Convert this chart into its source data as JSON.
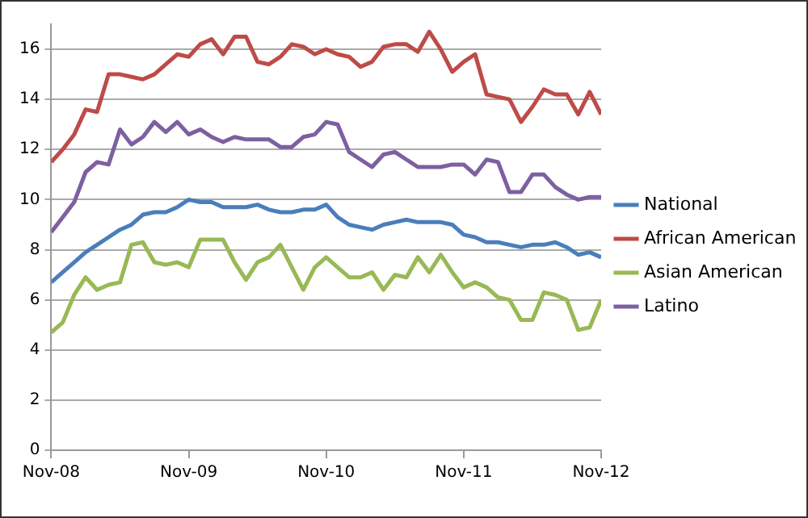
{
  "chart_data": {
    "type": "line",
    "x": [
      "2008-11",
      "2008-12",
      "2009-01",
      "2009-02",
      "2009-03",
      "2009-04",
      "2009-05",
      "2009-06",
      "2009-07",
      "2009-08",
      "2009-09",
      "2009-10",
      "2009-11",
      "2009-12",
      "2010-01",
      "2010-02",
      "2010-03",
      "2010-04",
      "2010-05",
      "2010-06",
      "2010-07",
      "2010-08",
      "2010-09",
      "2010-10",
      "2010-11",
      "2010-12",
      "2011-01",
      "2011-02",
      "2011-03",
      "2011-04",
      "2011-05",
      "2011-06",
      "2011-07",
      "2011-08",
      "2011-09",
      "2011-10",
      "2011-11",
      "2011-12",
      "2012-01",
      "2012-02",
      "2012-03",
      "2012-04",
      "2012-05",
      "2012-06",
      "2012-07",
      "2012-08",
      "2012-09",
      "2012-10",
      "2012-11"
    ],
    "series": [
      {
        "name": "National",
        "color": "#4a7ebb",
        "values": [
          6.7,
          7.1,
          7.5,
          7.9,
          8.2,
          8.5,
          8.8,
          9.0,
          9.4,
          9.5,
          9.5,
          9.7,
          10.0,
          9.9,
          9.9,
          9.7,
          9.7,
          9.7,
          9.8,
          9.6,
          9.5,
          9.5,
          9.6,
          9.6,
          9.8,
          9.3,
          9.0,
          8.9,
          8.8,
          9.0,
          9.1,
          9.2,
          9.1,
          9.1,
          9.1,
          9.0,
          8.6,
          8.5,
          8.3,
          8.3,
          8.2,
          8.1,
          8.2,
          8.2,
          8.3,
          8.1,
          7.8,
          7.9,
          7.7
        ]
      },
      {
        "name": "African American",
        "color": "#be4b48",
        "values": [
          11.5,
          12.0,
          12.6,
          13.6,
          13.5,
          15.0,
          15.0,
          14.9,
          14.8,
          15.0,
          15.4,
          15.8,
          15.7,
          16.2,
          16.4,
          15.8,
          16.5,
          16.5,
          15.5,
          15.4,
          15.7,
          16.2,
          16.1,
          15.8,
          16.0,
          15.8,
          15.7,
          15.3,
          15.5,
          16.1,
          16.2,
          16.2,
          15.9,
          16.7,
          16.0,
          15.1,
          15.5,
          15.8,
          14.2,
          14.1,
          14.0,
          13.1,
          13.7,
          14.4,
          14.2,
          14.2,
          13.4,
          14.3,
          13.4
        ]
      },
      {
        "name": "Asian American",
        "color": "#98b954",
        "values": [
          4.7,
          5.1,
          6.2,
          6.9,
          6.4,
          6.6,
          6.7,
          8.2,
          8.3,
          7.5,
          7.4,
          7.5,
          7.3,
          8.4,
          8.4,
          8.4,
          7.5,
          6.8,
          7.5,
          7.7,
          8.2,
          7.3,
          6.4,
          7.3,
          7.7,
          7.3,
          6.9,
          6.9,
          7.1,
          6.4,
          7.0,
          6.9,
          7.7,
          7.1,
          7.8,
          7.1,
          6.5,
          6.7,
          6.5,
          6.1,
          6.0,
          5.2,
          5.2,
          6.3,
          6.2,
          6.0,
          4.8,
          4.9,
          6.0
        ]
      },
      {
        "name": "Latino",
        "color": "#7d60a0",
        "values": [
          8.7,
          9.3,
          9.9,
          11.1,
          11.5,
          11.4,
          12.8,
          12.2,
          12.5,
          13.1,
          12.7,
          13.1,
          12.6,
          12.8,
          12.5,
          12.3,
          12.5,
          12.4,
          12.4,
          12.4,
          12.1,
          12.1,
          12.5,
          12.6,
          13.1,
          13.0,
          11.9,
          11.6,
          11.3,
          11.8,
          11.9,
          11.6,
          11.3,
          11.3,
          11.3,
          11.4,
          11.4,
          11.0,
          11.6,
          11.5,
          10.3,
          10.3,
          11.0,
          11.0,
          10.5,
          10.2,
          10.0,
          10.1,
          10.1
        ]
      }
    ],
    "xlim": [
      "2008-11",
      "2012-11"
    ],
    "xticks": [
      {
        "value": "2008-11",
        "label": "Nov-08"
      },
      {
        "value": "2009-11",
        "label": "Nov-09"
      },
      {
        "value": "2010-11",
        "label": "Nov-10"
      },
      {
        "value": "2011-11",
        "label": "Nov-11"
      },
      {
        "value": "2012-11",
        "label": "Nov-12"
      }
    ],
    "ylim": [
      0,
      17
    ],
    "yticks": [
      0,
      2,
      4,
      6,
      8,
      10,
      12,
      14,
      16
    ],
    "grid": "y",
    "legend": "right",
    "marker": "none",
    "line_style": "solid"
  }
}
